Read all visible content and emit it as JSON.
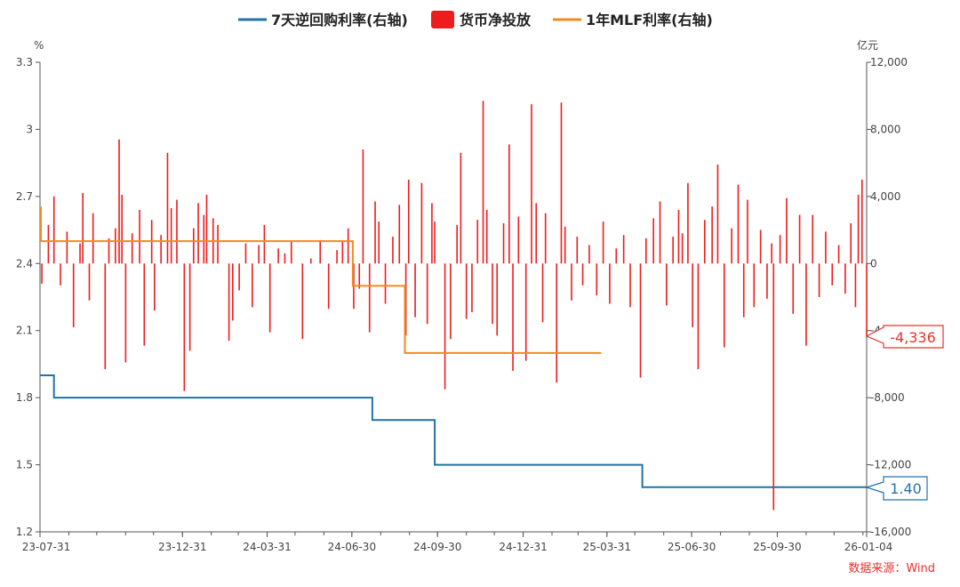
{
  "chart_data": {
    "type": "bar+line",
    "legend": [
      {
        "name": "7天逆回购利率(右轴)",
        "color": "#2373a6",
        "shape": "line"
      },
      {
        "name": "货币净投放",
        "color": "#ee1c1c",
        "shape": "rect"
      },
      {
        "name": "1年MLF利率(右轴)",
        "color": "#f28a1e",
        "shape": "line"
      }
    ],
    "left_axis": {
      "unit": "%",
      "min": 1.2,
      "max": 3.3,
      "ticks": [
        "1.2",
        "1.5",
        "1.8",
        "2.1",
        "2.4",
        "2.7",
        "3",
        "3.3"
      ]
    },
    "right_axis": {
      "unit": "亿元",
      "min": -16000,
      "max": 12000,
      "ticks": [
        "-16,000",
        "-12,000",
        "-8,000",
        "-4,000",
        "0",
        "4,000",
        "8,000",
        "12,000"
      ]
    },
    "x_axis": {
      "start": "2023-07-31",
      "end": "2026-01-04",
      "ticks": [
        {
          "date": "2023-07-31",
          "label": "23-07-31"
        },
        {
          "date": "2023-12-31",
          "label": "23-12-31"
        },
        {
          "date": "2024-03-31",
          "label": "24-03-31"
        },
        {
          "date": "2024-06-30",
          "label": "24-06-30"
        },
        {
          "date": "2024-09-30",
          "label": "24-09-30"
        },
        {
          "date": "2024-12-31",
          "label": "24-12-31"
        },
        {
          "date": "2025-03-31",
          "label": "25-03-31"
        },
        {
          "date": "2025-06-30",
          "label": "25-06-30"
        },
        {
          "date": "2025-09-30",
          "label": "25-09-30"
        },
        {
          "date": "2026-01-04",
          "label": "26-01-04"
        }
      ]
    },
    "reverse_repo_7d": {
      "name": "7天逆回购利率(右轴)",
      "color": "#2373a6",
      "steps": [
        {
          "date": "2023-07-31",
          "value": 1.9
        },
        {
          "date": "2023-08-15",
          "value": 1.8
        },
        {
          "date": "2024-07-22",
          "value": 1.7
        },
        {
          "date": "2024-09-27",
          "value": 1.5
        },
        {
          "date": "2025-05-08",
          "value": 1.4
        }
      ],
      "end_date": "2026-01-04",
      "last_label": "1.40"
    },
    "mlf_1y": {
      "name": "1年MLF利率(右轴)",
      "color": "#f28a1e",
      "steps": [
        {
          "date": "2023-07-31",
          "value": 2.65
        },
        {
          "date": "2023-08-01",
          "value": 2.5
        },
        {
          "date": "2024-06-30",
          "value": 2.5
        },
        {
          "date": "2024-07-01",
          "value": 2.3
        },
        {
          "date": "2024-08-25",
          "value": 2.3
        },
        {
          "date": "2024-08-26",
          "value": 2.0
        }
      ],
      "end_date": "2025-03-25"
    },
    "net_injection": {
      "name": "货币净投放",
      "color": "#ee1c1c",
      "unit": "亿元",
      "last_label": "-4,336",
      "points": [
        {
          "date": "2023-08-02",
          "value": -1200
        },
        {
          "date": "2023-08-09",
          "value": 2300
        },
        {
          "date": "2023-08-15",
          "value": 4000
        },
        {
          "date": "2023-08-22",
          "value": -1300
        },
        {
          "date": "2023-08-29",
          "value": 1900
        },
        {
          "date": "2023-09-05",
          "value": -3800
        },
        {
          "date": "2023-09-12",
          "value": 1200
        },
        {
          "date": "2023-09-15",
          "value": 4200
        },
        {
          "date": "2023-09-22",
          "value": -2200
        },
        {
          "date": "2023-09-26",
          "value": 3000
        },
        {
          "date": "2023-10-09",
          "value": -6300
        },
        {
          "date": "2023-10-13",
          "value": 1500
        },
        {
          "date": "2023-10-20",
          "value": 2100
        },
        {
          "date": "2023-10-24",
          "value": 7400
        },
        {
          "date": "2023-10-27",
          "value": 4100
        },
        {
          "date": "2023-10-31",
          "value": -5900
        },
        {
          "date": "2023-11-07",
          "value": 1800
        },
        {
          "date": "2023-11-15",
          "value": 3200
        },
        {
          "date": "2023-11-20",
          "value": -4900
        },
        {
          "date": "2023-11-28",
          "value": 2600
        },
        {
          "date": "2023-12-01",
          "value": -2800
        },
        {
          "date": "2023-12-08",
          "value": 1700
        },
        {
          "date": "2023-12-15",
          "value": 6600
        },
        {
          "date": "2023-12-19",
          "value": 3300
        },
        {
          "date": "2023-12-25",
          "value": 3800
        },
        {
          "date": "2024-01-02",
          "value": -7600
        },
        {
          "date": "2024-01-08",
          "value": -5200
        },
        {
          "date": "2024-01-12",
          "value": 2100
        },
        {
          "date": "2024-01-17",
          "value": 3600
        },
        {
          "date": "2024-01-23",
          "value": 2900
        },
        {
          "date": "2024-01-26",
          "value": 4100
        },
        {
          "date": "2024-02-02",
          "value": 2700
        },
        {
          "date": "2024-02-07",
          "value": 2300
        },
        {
          "date": "2024-02-19",
          "value": -4600
        },
        {
          "date": "2024-02-23",
          "value": -3400
        },
        {
          "date": "2024-03-01",
          "value": -1600
        },
        {
          "date": "2024-03-08",
          "value": 1200
        },
        {
          "date": "2024-03-15",
          "value": -2600
        },
        {
          "date": "2024-03-22",
          "value": 1100
        },
        {
          "date": "2024-03-28",
          "value": 2300
        },
        {
          "date": "2024-04-03",
          "value": -4100
        },
        {
          "date": "2024-04-12",
          "value": 900
        },
        {
          "date": "2024-04-19",
          "value": 600
        },
        {
          "date": "2024-04-26",
          "value": 1300
        },
        {
          "date": "2024-05-08",
          "value": -4500
        },
        {
          "date": "2024-05-17",
          "value": 300
        },
        {
          "date": "2024-05-27",
          "value": 1400
        },
        {
          "date": "2024-06-05",
          "value": -2700
        },
        {
          "date": "2024-06-14",
          "value": 800
        },
        {
          "date": "2024-06-20",
          "value": 1300
        },
        {
          "date": "2024-06-26",
          "value": 2100
        },
        {
          "date": "2024-07-02",
          "value": -2700
        },
        {
          "date": "2024-07-08",
          "value": -1500
        },
        {
          "date": "2024-07-12",
          "value": 6800
        },
        {
          "date": "2024-07-19",
          "value": -4100
        },
        {
          "date": "2024-07-25",
          "value": 3700
        },
        {
          "date": "2024-07-29",
          "value": 2500
        },
        {
          "date": "2024-08-05",
          "value": -2400
        },
        {
          "date": "2024-08-13",
          "value": 1600
        },
        {
          "date": "2024-08-20",
          "value": 3500
        },
        {
          "date": "2024-08-27",
          "value": -4300
        },
        {
          "date": "2024-08-30",
          "value": 5000
        },
        {
          "date": "2024-09-06",
          "value": -3200
        },
        {
          "date": "2024-09-13",
          "value": 4800
        },
        {
          "date": "2024-09-19",
          "value": -3600
        },
        {
          "date": "2024-09-24",
          "value": 3600
        },
        {
          "date": "2024-09-27",
          "value": 2500
        },
        {
          "date": "2024-10-08",
          "value": -7500
        },
        {
          "date": "2024-10-14",
          "value": -4500
        },
        {
          "date": "2024-10-21",
          "value": 2300
        },
        {
          "date": "2024-10-25",
          "value": 6600
        },
        {
          "date": "2024-10-31",
          "value": -3300
        },
        {
          "date": "2024-11-06",
          "value": -2900
        },
        {
          "date": "2024-11-12",
          "value": 2600
        },
        {
          "date": "2024-11-18",
          "value": 9700
        },
        {
          "date": "2024-11-22",
          "value": 3200
        },
        {
          "date": "2024-11-28",
          "value": -3600
        },
        {
          "date": "2024-12-03",
          "value": -4300
        },
        {
          "date": "2024-12-10",
          "value": 2400
        },
        {
          "date": "2024-12-16",
          "value": 7100
        },
        {
          "date": "2024-12-20",
          "value": -6400
        },
        {
          "date": "2024-12-26",
          "value": 2800
        },
        {
          "date": "2025-01-03",
          "value": -5800
        },
        {
          "date": "2025-01-09",
          "value": 9500
        },
        {
          "date": "2025-01-14",
          "value": 3600
        },
        {
          "date": "2025-01-21",
          "value": -3500
        },
        {
          "date": "2025-01-24",
          "value": 3000
        },
        {
          "date": "2025-02-05",
          "value": -7100
        },
        {
          "date": "2025-02-10",
          "value": 9600
        },
        {
          "date": "2025-02-14",
          "value": 2200
        },
        {
          "date": "2025-02-21",
          "value": -2200
        },
        {
          "date": "2025-02-27",
          "value": 1600
        },
        {
          "date": "2025-03-05",
          "value": -1300
        },
        {
          "date": "2025-03-12",
          "value": 1100
        },
        {
          "date": "2025-03-20",
          "value": -1900
        },
        {
          "date": "2025-03-27",
          "value": 2500
        },
        {
          "date": "2025-04-03",
          "value": -2400
        },
        {
          "date": "2025-04-10",
          "value": 900
        },
        {
          "date": "2025-04-18",
          "value": 1700
        },
        {
          "date": "2025-04-25",
          "value": -2600
        },
        {
          "date": "2025-05-06",
          "value": -6800
        },
        {
          "date": "2025-05-12",
          "value": 1500
        },
        {
          "date": "2025-05-20",
          "value": 2700
        },
        {
          "date": "2025-05-27",
          "value": 3700
        },
        {
          "date": "2025-06-03",
          "value": -2500
        },
        {
          "date": "2025-06-10",
          "value": 1600
        },
        {
          "date": "2025-06-16",
          "value": 3200
        },
        {
          "date": "2025-06-20",
          "value": 1800
        },
        {
          "date": "2025-06-26",
          "value": 4800
        },
        {
          "date": "2025-07-01",
          "value": -3800
        },
        {
          "date": "2025-07-07",
          "value": -6300
        },
        {
          "date": "2025-07-14",
          "value": 2600
        },
        {
          "date": "2025-07-22",
          "value": 3400
        },
        {
          "date": "2025-07-28",
          "value": 5900
        },
        {
          "date": "2025-08-04",
          "value": -5000
        },
        {
          "date": "2025-08-12",
          "value": 2100
        },
        {
          "date": "2025-08-19",
          "value": 4700
        },
        {
          "date": "2025-08-25",
          "value": -3200
        },
        {
          "date": "2025-08-29",
          "value": 3800
        },
        {
          "date": "2025-09-05",
          "value": -2600
        },
        {
          "date": "2025-09-12",
          "value": 2000
        },
        {
          "date": "2025-09-19",
          "value": -2100
        },
        {
          "date": "2025-09-24",
          "value": 1200
        },
        {
          "date": "2025-09-26",
          "value": -14700
        },
        {
          "date": "2025-10-03",
          "value": 1700
        },
        {
          "date": "2025-10-10",
          "value": 3900
        },
        {
          "date": "2025-10-17",
          "value": -3000
        },
        {
          "date": "2025-10-24",
          "value": 2900
        },
        {
          "date": "2025-10-31",
          "value": -4900
        },
        {
          "date": "2025-11-07",
          "value": 2900
        },
        {
          "date": "2025-11-14",
          "value": -2000
        },
        {
          "date": "2025-11-21",
          "value": 1900
        },
        {
          "date": "2025-11-28",
          "value": -1300
        },
        {
          "date": "2025-12-05",
          "value": 1100
        },
        {
          "date": "2025-12-12",
          "value": -1800
        },
        {
          "date": "2025-12-18",
          "value": 2400
        },
        {
          "date": "2025-12-23",
          "value": -2600
        },
        {
          "date": "2025-12-26",
          "value": 4100
        },
        {
          "date": "2025-12-30",
          "value": 5000
        },
        {
          "date": "2026-01-04",
          "value": -4336
        }
      ]
    }
  },
  "source_text": "数据来源：Wind"
}
